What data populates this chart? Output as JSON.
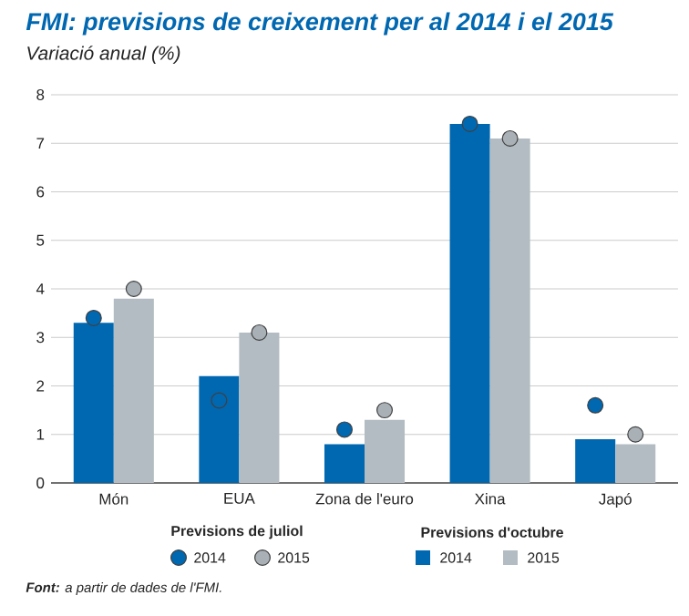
{
  "chart_data": {
    "type": "bar",
    "title": "FMI: previsions de creixement per al 2014 i el 2015",
    "subtitle": "Variació anual (%)",
    "categories": [
      "Món",
      "EUA",
      "Zona de l'euro",
      "Xina",
      "Japó"
    ],
    "series": [
      {
        "name": "2014",
        "color": "#0067b1",
        "values": [
          3.3,
          2.2,
          0.8,
          7.4,
          0.9
        ]
      },
      {
        "name": "2015",
        "color": "#b3bcc2",
        "values": [
          3.8,
          3.1,
          1.3,
          7.1,
          0.8
        ]
      },
      {
        "name": "2014",
        "type": "scatter",
        "color": "#0067b1",
        "x": [
          "Món",
          "EUA",
          "Zona de l'euro",
          "Xina",
          "Japó"
        ],
        "values": [
          3.4,
          1.7,
          1.1,
          7.4,
          1.6
        ]
      },
      {
        "name": "2015",
        "type": "scatter",
        "color": "#a9b1b6",
        "x": [
          "Món",
          "EUA",
          "Zona de l'euro",
          "Xina",
          "Japó"
        ],
        "values": [
          4.0,
          3.1,
          1.5,
          7.1,
          1.0
        ]
      }
    ],
    "ylim": [
      0,
      8
    ],
    "yticks": [
      0,
      1,
      2,
      3,
      4,
      5,
      6,
      7,
      8
    ],
    "grid": "y",
    "legend": "bottom",
    "marker": "circle",
    "annotations": [
      "Previsions de juliol",
      "Previsions d'octubre",
      "**Font:** a partir de dades de l'FMI."
    ]
  }
}
